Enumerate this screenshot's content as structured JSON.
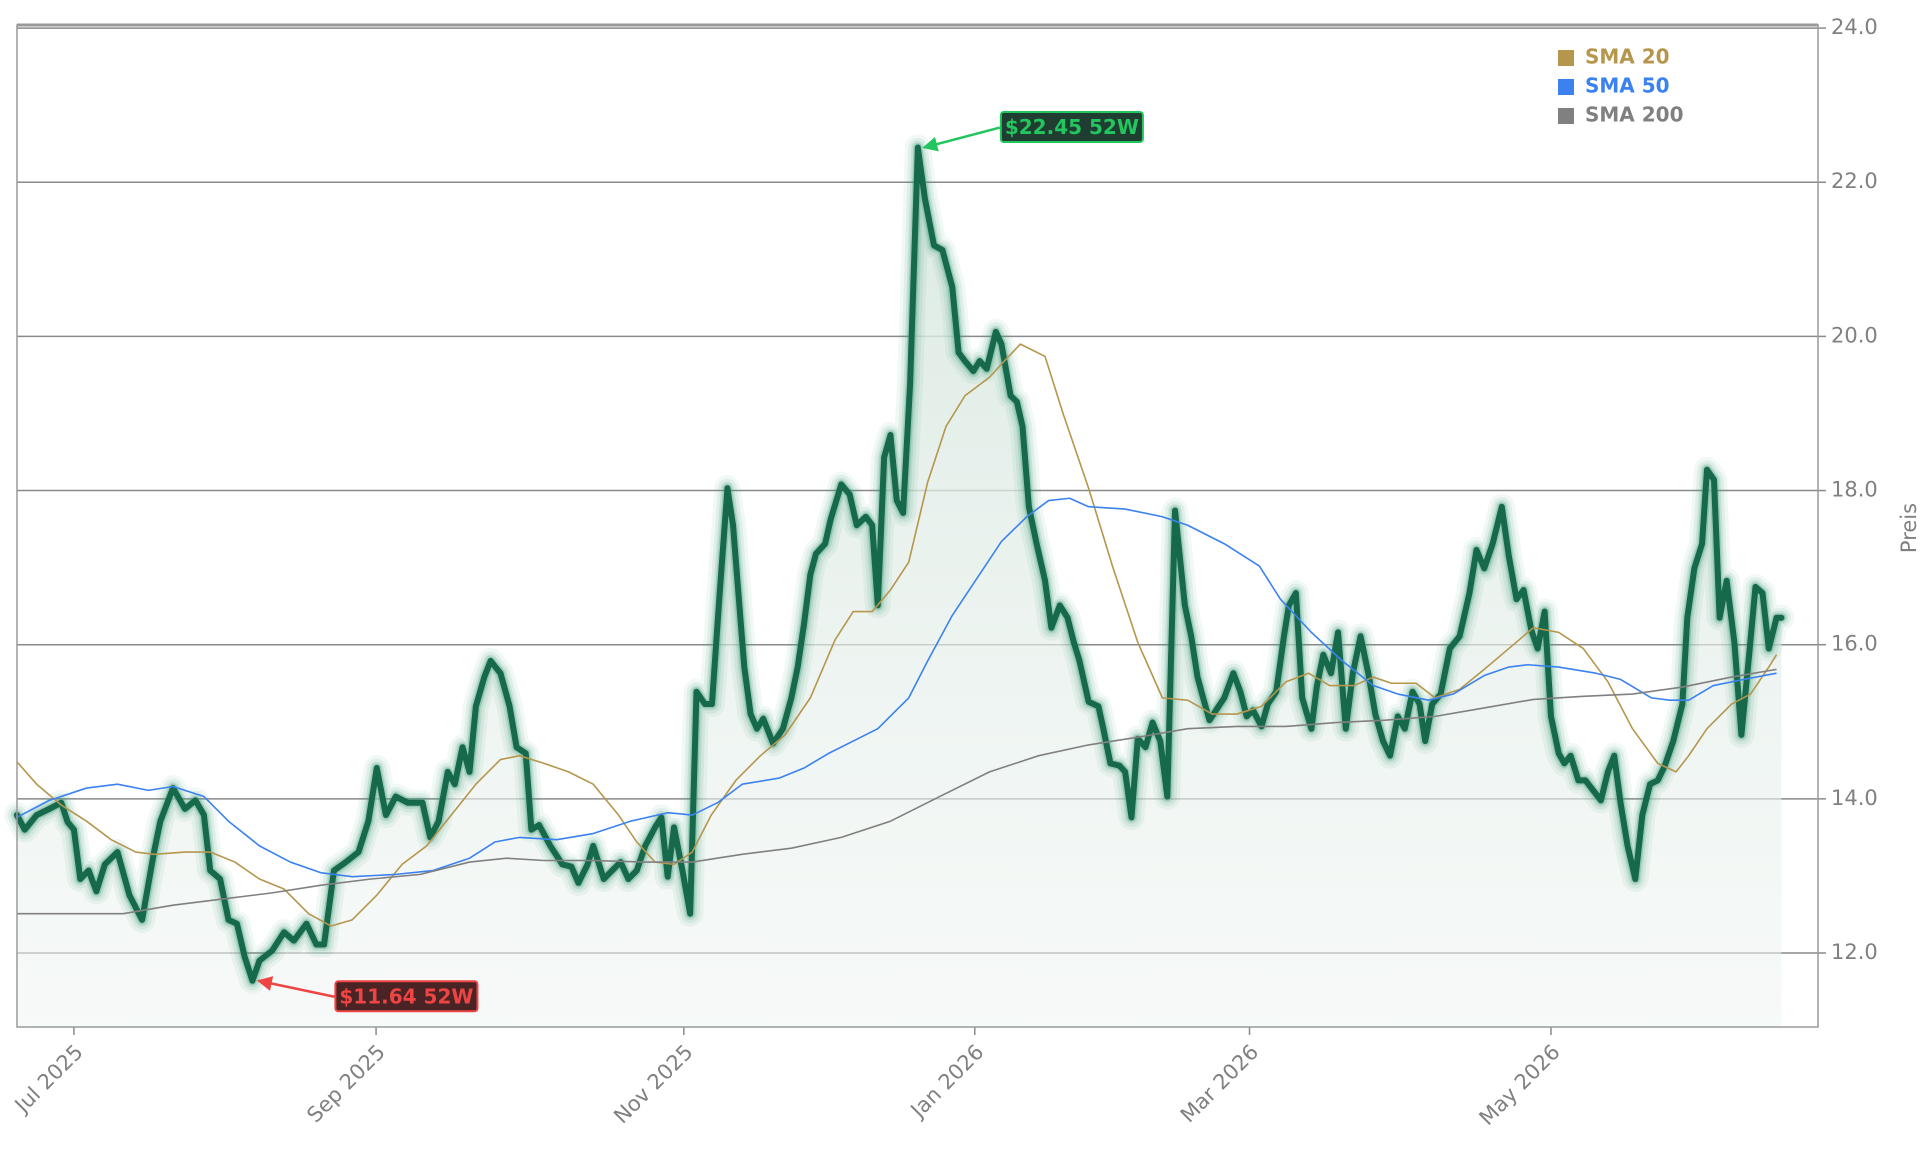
{
  "chart_data": {
    "type": "line",
    "y_label": "Preis",
    "xlim": [
      0,
      256.3
    ],
    "ylim": [
      11.04,
      24.04
    ],
    "xticks": [
      {
        "value": 8.1,
        "label": "Jul 2025"
      },
      {
        "value": 51.1,
        "label": "Sep 2025"
      },
      {
        "value": 94.9,
        "label": "Nov 2025"
      },
      {
        "value": 136.3,
        "label": "Jan 2026"
      },
      {
        "value": 175.4,
        "label": "Mar 2026"
      },
      {
        "value": 218.3,
        "label": "May 2026"
      }
    ],
    "yticks": [
      {
        "value": 12,
        "label": "12.0"
      },
      {
        "value": 14,
        "label": "14.0"
      },
      {
        "value": 16,
        "label": "16.0"
      },
      {
        "value": 18,
        "label": "18.0"
      },
      {
        "value": 20,
        "label": "20.0"
      },
      {
        "value": 22,
        "label": "22.0"
      },
      {
        "value": 24,
        "label": "24.0"
      }
    ],
    "grid": true,
    "legend": "upper right",
    "series": [
      {
        "color": "#17694c",
        "fill": true,
        "x": [
          0,
          1.1,
          2.8,
          4.6,
          6.3,
          7.2,
          8.1,
          9.0,
          10.2,
          11.3,
          12.5,
          14.3,
          16.0,
          17.8,
          19.5,
          20.4,
          22.2,
          23.9,
          25.4,
          26.6,
          27.5,
          28.9,
          30.1,
          31.3,
          32.4,
          33.5,
          34.5,
          36.3,
          38.0,
          39.4,
          41.2,
          42.6,
          43.7,
          45.1,
          46.8,
          48.6,
          50.0,
          51.2,
          52.5,
          53.9,
          55.6,
          57.7,
          58.8,
          60.0,
          61.3,
          62.3,
          63.4,
          64.4,
          65.3,
          66.5,
          67.4,
          68.8,
          70.1,
          71.1,
          72.4,
          73.2,
          74.3,
          75.9,
          77.6,
          78.9,
          79.9,
          81.2,
          82.0,
          83.5,
          84.7,
          85.9,
          87.0,
          88.2,
          89.4,
          90.8,
          91.7,
          92.6,
          93.5,
          94.7,
          95.8,
          96.7,
          97.9,
          98.9,
          100.0,
          101.1,
          101.9,
          102.8,
          103.5,
          104.4,
          105.3,
          106.2,
          107.6,
          109.0,
          110.2,
          111.1,
          112.0,
          112.9,
          113.7,
          115.0,
          115.8,
          117.3,
          118.5,
          119.5,
          120.8,
          121.7,
          122.5,
          123.4,
          124.3,
          125.2,
          126.1,
          127.1,
          128.2,
          129.2,
          130.5,
          131.7,
          133.1,
          134.0,
          134.9,
          136.1,
          137.0,
          138.0,
          139.3,
          140.1,
          141.4,
          142.3,
          143.1,
          144.0,
          145.1,
          146.3,
          147.2,
          148.4,
          149.5,
          150.4,
          151.2,
          152.5,
          153.9,
          154.6,
          155.6,
          156.9,
          157.7,
          158.6,
          159.5,
          160.6,
          161.6,
          162.7,
          163.7,
          164.8,
          166.2,
          167.1,
          168.0,
          168.8,
          169.7,
          171.0,
          171.8,
          173.1,
          174.1,
          175.0,
          175.9,
          177.1,
          178.0,
          179.2,
          180.3,
          181.0,
          182.0,
          182.9,
          184.2,
          185.0,
          185.9,
          187.0,
          188.0,
          189.1,
          190.1,
          191.2,
          192.3,
          193.3,
          194.4,
          195.4,
          196.5,
          197.5,
          198.6,
          199.6,
          200.4,
          201.4,
          202.6,
          203.9,
          205.3,
          206.7,
          207.7,
          208.8,
          210.0,
          211.3,
          212.3,
          213.4,
          214.4,
          215.5,
          216.4,
          217.4,
          218.3,
          219.4,
          220.2,
          221.1,
          222.2,
          223.2,
          224.3,
          225.4,
          226.4,
          227.3,
          228.2,
          229.2,
          230.3,
          231.3,
          232.4,
          233.5,
          234.5,
          235.7,
          237.0,
          237.7,
          238.7,
          239.8,
          240.5,
          241.5,
          242.3,
          243.3,
          244.4,
          245.4,
          246.5,
          247.4,
          248.4,
          249.3,
          250.4,
          251.1
        ],
        "values": [
          13.79,
          13.6,
          13.79,
          13.87,
          13.95,
          13.7,
          13.6,
          12.96,
          13.07,
          12.8,
          13.15,
          13.31,
          12.75,
          12.43,
          13.31,
          13.71,
          14.14,
          13.87,
          13.98,
          13.79,
          13.07,
          12.96,
          12.43,
          12.38,
          11.95,
          11.64,
          11.9,
          12.03,
          12.27,
          12.16,
          12.38,
          12.11,
          12.11,
          13.07,
          13.18,
          13.31,
          13.71,
          14.4,
          13.79,
          14.03,
          13.95,
          13.95,
          13.5,
          13.71,
          14.35,
          14.19,
          14.67,
          14.35,
          15.2,
          15.58,
          15.79,
          15.63,
          15.2,
          14.67,
          14.59,
          13.6,
          13.66,
          13.39,
          13.15,
          13.12,
          12.91,
          13.15,
          13.39,
          12.96,
          13.07,
          13.18,
          12.96,
          13.07,
          13.39,
          13.63,
          13.76,
          12.99,
          13.63,
          13.07,
          12.51,
          15.39,
          15.23,
          15.23,
          16.67,
          18.03,
          17.55,
          16.51,
          15.71,
          15.1,
          14.91,
          15.04,
          14.72,
          14.91,
          15.31,
          15.71,
          16.27,
          16.91,
          17.18,
          17.31,
          17.63,
          18.08,
          17.95,
          17.55,
          17.66,
          17.55,
          16.51,
          18.43,
          18.72,
          17.87,
          17.71,
          19.39,
          22.45,
          21.79,
          21.18,
          21.12,
          20.64,
          19.79,
          19.68,
          19.55,
          19.68,
          19.58,
          20.06,
          19.9,
          19.23,
          19.15,
          18.83,
          17.79,
          17.31,
          16.83,
          16.22,
          16.51,
          16.35,
          16.03,
          15.79,
          15.26,
          15.2,
          14.91,
          14.46,
          14.43,
          14.35,
          13.76,
          14.78,
          14.67,
          14.99,
          14.75,
          14.03,
          17.74,
          16.51,
          16.11,
          15.58,
          15.31,
          15.02,
          15.2,
          15.31,
          15.63,
          15.39,
          15.07,
          15.15,
          14.94,
          15.23,
          15.39,
          16.11,
          16.51,
          16.67,
          15.31,
          14.91,
          15.47,
          15.87,
          15.63,
          16.16,
          14.91,
          15.63,
          16.11,
          15.63,
          15.1,
          14.75,
          14.56,
          15.07,
          14.91,
          15.39,
          15.23,
          14.75,
          15.23,
          15.36,
          15.95,
          16.11,
          16.67,
          17.23,
          16.99,
          17.31,
          17.79,
          17.15,
          16.59,
          16.71,
          16.19,
          15.95,
          16.43,
          15.07,
          14.59,
          14.46,
          14.56,
          14.24,
          14.24,
          14.11,
          13.98,
          14.35,
          14.56,
          13.95,
          13.39,
          12.96,
          13.79,
          14.19,
          14.24,
          14.43,
          14.75,
          15.23,
          16.35,
          16.99,
          17.31,
          18.27,
          18.14,
          16.35,
          16.83,
          16.03,
          14.83,
          15.87,
          16.75,
          16.67,
          15.95,
          16.35,
          16.35
        ]
      },
      {
        "name": "SMA 20",
        "color": "#b5964c",
        "x": [
          0,
          2.8,
          6.3,
          9.9,
          13.4,
          16.9,
          19.5,
          23.9,
          27.5,
          31.0,
          34.5,
          38.0,
          41.5,
          44.7,
          47.7,
          51.2,
          54.8,
          58.3,
          61.8,
          65.3,
          68.8,
          71.5,
          75.0,
          78.5,
          82.0,
          85.6,
          88.2,
          90.8,
          93.5,
          96.1,
          98.8,
          102.3,
          105.8,
          109.3,
          112.9,
          116.4,
          119.0,
          121.7,
          124.3,
          126.9,
          129.6,
          132.2,
          134.9,
          138.4,
          140.5,
          142.8,
          146.3,
          148.9,
          152.5,
          156.0,
          159.5,
          163.0,
          166.6,
          170.1,
          173.6,
          177.1,
          180.6,
          183.8,
          186.8,
          190.3,
          193.0,
          195.6,
          199.1,
          201.8,
          205.3,
          208.8,
          212.3,
          215.8,
          219.4,
          222.9,
          226.4,
          229.9,
          233.5,
          236.1,
          237.9,
          240.5,
          244.0,
          246.7,
          249.3,
          250.4
        ],
        "values": [
          14.48,
          14.19,
          13.92,
          13.71,
          13.47,
          13.31,
          13.28,
          13.31,
          13.31,
          13.18,
          12.96,
          12.83,
          12.51,
          12.35,
          12.43,
          12.75,
          13.15,
          13.39,
          13.79,
          14.19,
          14.51,
          14.56,
          14.46,
          14.35,
          14.19,
          13.79,
          13.44,
          13.18,
          13.15,
          13.31,
          13.79,
          14.24,
          14.56,
          14.83,
          15.31,
          16.06,
          16.43,
          16.43,
          16.71,
          17.07,
          18.11,
          18.83,
          19.23,
          19.47,
          19.68,
          19.9,
          19.74,
          18.99,
          18.03,
          16.99,
          16.03,
          15.31,
          15.28,
          15.1,
          15.1,
          15.2,
          15.52,
          15.63,
          15.47,
          15.47,
          15.58,
          15.5,
          15.5,
          15.31,
          15.42,
          15.68,
          15.95,
          16.22,
          16.16,
          15.95,
          15.52,
          14.91,
          14.46,
          14.35,
          14.56,
          14.91,
          15.23,
          15.36,
          15.71,
          15.87
        ]
      },
      {
        "name": "SMA 50",
        "color": "#3b82f0",
        "x": [
          0,
          4.6,
          9.9,
          14.3,
          18.7,
          22.2,
          26.6,
          30.1,
          34.5,
          38.9,
          43.3,
          47.7,
          53.9,
          59.2,
          64.4,
          68.0,
          71.5,
          76.8,
          82.0,
          87.3,
          92.6,
          96.1,
          99.7,
          103.2,
          108.5,
          112.0,
          115.5,
          119.0,
          122.5,
          126.9,
          129.6,
          133.1,
          136.6,
          140.1,
          143.7,
          146.8,
          149.8,
          152.5,
          157.7,
          163.0,
          166.6,
          171.8,
          176.8,
          179.8,
          184.2,
          188.6,
          193.0,
          196.5,
          200.9,
          204.4,
          208.8,
          212.3,
          215.0,
          219.4,
          224.7,
          228.2,
          232.6,
          235.2,
          237.9,
          241.4,
          245.8,
          250.4
        ],
        "values": [
          13.76,
          13.98,
          14.14,
          14.19,
          14.11,
          14.16,
          14.03,
          13.71,
          13.39,
          13.18,
          13.04,
          12.99,
          13.02,
          13.07,
          13.23,
          13.44,
          13.5,
          13.47,
          13.55,
          13.71,
          13.82,
          13.79,
          13.95,
          14.19,
          14.27,
          14.4,
          14.59,
          14.75,
          14.91,
          15.31,
          15.79,
          16.38,
          16.86,
          17.34,
          17.66,
          17.87,
          17.9,
          17.79,
          17.76,
          17.66,
          17.55,
          17.31,
          17.02,
          16.59,
          16.16,
          15.79,
          15.47,
          15.36,
          15.28,
          15.36,
          15.6,
          15.71,
          15.74,
          15.71,
          15.63,
          15.55,
          15.31,
          15.28,
          15.28,
          15.47,
          15.55,
          15.63
        ]
      },
      {
        "name": "SMA 200",
        "color": "#808080",
        "x": [
          0,
          8.1,
          15.1,
          22.2,
          29.2,
          36.3,
          43.3,
          50.4,
          57.4,
          64.4,
          69.7,
          75.0,
          82.0,
          89.1,
          96.1,
          103.2,
          110.2,
          117.3,
          124.3,
          131.3,
          138.4,
          145.4,
          152.5,
          159.5,
          166.6,
          173.6,
          180.6,
          187.7,
          194.7,
          201.8,
          208.8,
          215.8,
          222.9,
          229.9,
          237.0,
          244.0,
          250.4
        ],
        "values": [
          12.51,
          12.51,
          12.51,
          12.62,
          12.7,
          12.78,
          12.88,
          12.96,
          13.02,
          13.18,
          13.23,
          13.2,
          13.2,
          13.18,
          13.18,
          13.28,
          13.36,
          13.5,
          13.71,
          14.03,
          14.35,
          14.56,
          14.7,
          14.8,
          14.91,
          14.94,
          14.94,
          14.99,
          15.02,
          15.07,
          15.18,
          15.29,
          15.33,
          15.36,
          15.45,
          15.58,
          15.68
        ]
      }
    ],
    "annotations": [
      {
        "text": "$22.45 52W",
        "x": 128.2,
        "y": 22.45,
        "color": "#22c55e",
        "box": "#1f3d30"
      },
      {
        "text": "$11.64 52W",
        "x": 33.5,
        "y": 11.64,
        "color": "#ef4444",
        "box": "#4a2424"
      }
    ]
  }
}
